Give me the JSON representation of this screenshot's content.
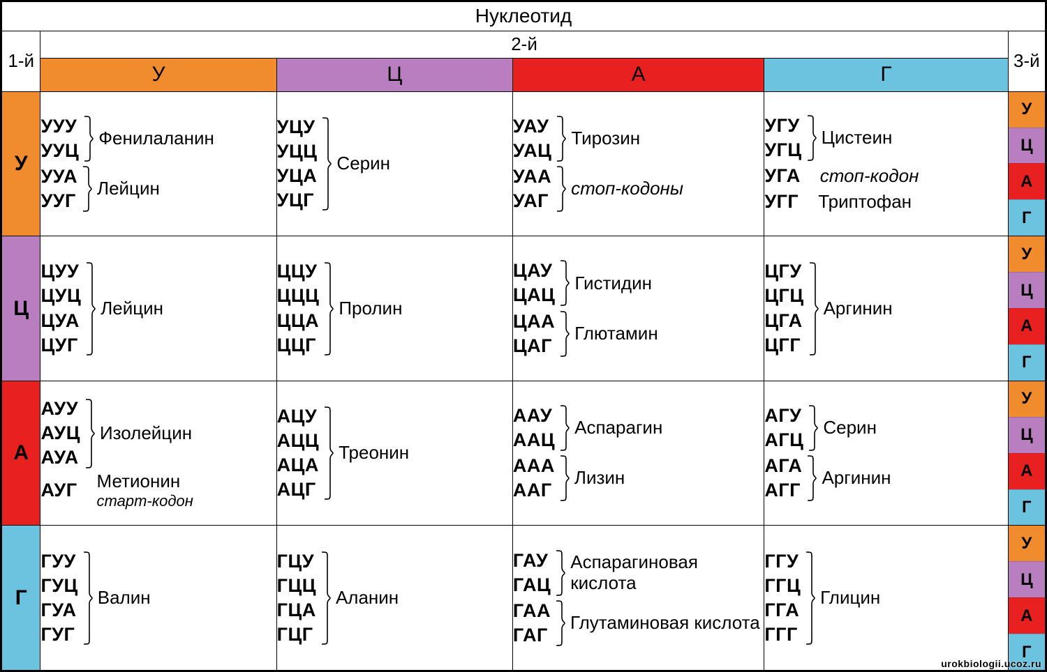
{
  "colors": {
    "U": "#f08c2e",
    "C": "#b97ec0",
    "A": "#e8201f",
    "G": "#6cc3e0",
    "bg": "#ffffff",
    "border": "#000000"
  },
  "typography": {
    "title_fontsize": 28,
    "header_fontsize": 30,
    "codon_fontsize": 27,
    "aa_fontsize": 26
  },
  "labels": {
    "title": "Нуклеотид",
    "first": "1-й",
    "second": "2-й",
    "third": "3-й"
  },
  "nucleotides": [
    "У",
    "Ц",
    "А",
    "Г"
  ],
  "body_row_height": 200,
  "table": {
    "type": "codon-table",
    "rows": [
      {
        "first": "У",
        "cells": [
          {
            "groups": [
              {
                "codons": [
                  "УУУ",
                  "УУЦ"
                ],
                "aa": "Фенилаланин"
              },
              {
                "codons": [
                  "УУА",
                  "УУГ"
                ],
                "aa": "Лейцин"
              }
            ]
          },
          {
            "groups": [
              {
                "codons": [
                  "УЦУ",
                  "УЦЦ",
                  "УЦА",
                  "УЦГ"
                ],
                "aa": "Серин"
              }
            ]
          },
          {
            "groups": [
              {
                "codons": [
                  "УАУ",
                  "УАЦ"
                ],
                "aa": "Тирозин"
              },
              {
                "codons": [
                  "УАА",
                  "УАГ"
                ],
                "aa": "стоп-кодоны",
                "italic": true
              }
            ]
          },
          {
            "groups": [
              {
                "codons": [
                  "УГУ",
                  "УГЦ"
                ],
                "aa": "Цистеин"
              },
              {
                "codons": [
                  "УГА"
                ],
                "aa": "стоп-кодон",
                "italic": true,
                "nobrace": true
              },
              {
                "codons": [
                  "УГГ"
                ],
                "aa": "Триптофан",
                "nobrace": true
              }
            ]
          }
        ]
      },
      {
        "first": "Ц",
        "cells": [
          {
            "groups": [
              {
                "codons": [
                  "ЦУУ",
                  "ЦУЦ",
                  "ЦУА",
                  "ЦУГ"
                ],
                "aa": "Лейцин"
              }
            ]
          },
          {
            "groups": [
              {
                "codons": [
                  "ЦЦУ",
                  "ЦЦЦ",
                  "ЦЦА",
                  "ЦЦГ"
                ],
                "aa": "Пролин"
              }
            ]
          },
          {
            "groups": [
              {
                "codons": [
                  "ЦАУ",
                  "ЦАЦ"
                ],
                "aa": "Гистидин"
              },
              {
                "codons": [
                  "ЦАА",
                  "ЦАГ"
                ],
                "aa": "Глютамин"
              }
            ]
          },
          {
            "groups": [
              {
                "codons": [
                  "ЦГУ",
                  "ЦГЦ",
                  "ЦГА",
                  "ЦГГ"
                ],
                "aa": "Аргинин"
              }
            ]
          }
        ]
      },
      {
        "first": "А",
        "cells": [
          {
            "groups": [
              {
                "codons": [
                  "АУУ",
                  "АУЦ",
                  "АУА"
                ],
                "aa": "Изолейцин"
              },
              {
                "codons": [
                  "АУГ"
                ],
                "aa": "Метионин",
                "sub": "старт-кодон",
                "nobrace": true
              }
            ]
          },
          {
            "groups": [
              {
                "codons": [
                  "АЦУ",
                  "АЦЦ",
                  "АЦА",
                  "АЦГ"
                ],
                "aa": "Треонин"
              }
            ]
          },
          {
            "groups": [
              {
                "codons": [
                  "ААУ",
                  "ААЦ"
                ],
                "aa": "Аспарагин"
              },
              {
                "codons": [
                  "ААА",
                  "ААГ"
                ],
                "aa": "Лизин"
              }
            ]
          },
          {
            "groups": [
              {
                "codons": [
                  "АГУ",
                  "АГЦ"
                ],
                "aa": "Серин"
              },
              {
                "codons": [
                  "АГА",
                  "АГГ"
                ],
                "aa": "Аргинин"
              }
            ]
          }
        ]
      },
      {
        "first": "Г",
        "cells": [
          {
            "groups": [
              {
                "codons": [
                  "ГУУ",
                  "ГУЦ",
                  "ГУА",
                  "ГУГ"
                ],
                "aa": "Валин"
              }
            ]
          },
          {
            "groups": [
              {
                "codons": [
                  "ГЦУ",
                  "ГЦЦ",
                  "ГЦА",
                  "ГЦГ"
                ],
                "aa": "Аланин"
              }
            ]
          },
          {
            "groups": [
              {
                "codons": [
                  "ГАУ",
                  "ГАЦ"
                ],
                "aa": "Аспарагиновая кислота"
              },
              {
                "codons": [
                  "ГАА",
                  "ГАГ"
                ],
                "aa": "Глутаминовая кислота"
              }
            ]
          },
          {
            "groups": [
              {
                "codons": [
                  "ГГУ",
                  "ГГЦ",
                  "ГГА",
                  "ГГГ"
                ],
                "aa": "Глицин"
              }
            ]
          }
        ]
      }
    ]
  },
  "watermark": "urokbiologii.ucoz.ru"
}
